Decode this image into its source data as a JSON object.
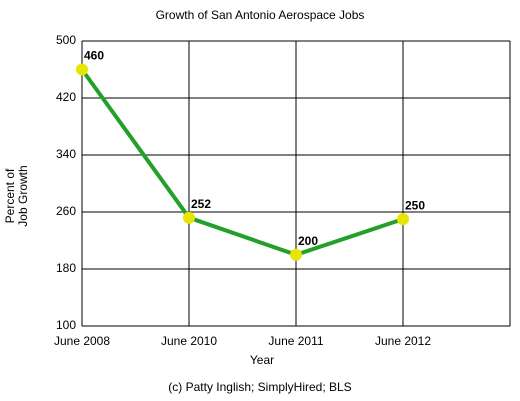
{
  "chart_data": {
    "type": "line",
    "title": "Growth of San Antonio Aerospace Jobs",
    "xlabel": "Year",
    "ylabel": "Percent of Job Growth",
    "note": "(c) Patty Inglish; SimplyHired; BLS",
    "categories": [
      "June 2008",
      "June 2010",
      "June 2011",
      "June 2012",
      null
    ],
    "values": [
      460,
      252,
      200,
      250,
      null
    ],
    "color": "#22a02a",
    "marker_color": "#e6e600",
    "ylim": [
      100,
      500
    ],
    "yticks": [
      100,
      180,
      260,
      340,
      420,
      500
    ],
    "grid": true
  }
}
